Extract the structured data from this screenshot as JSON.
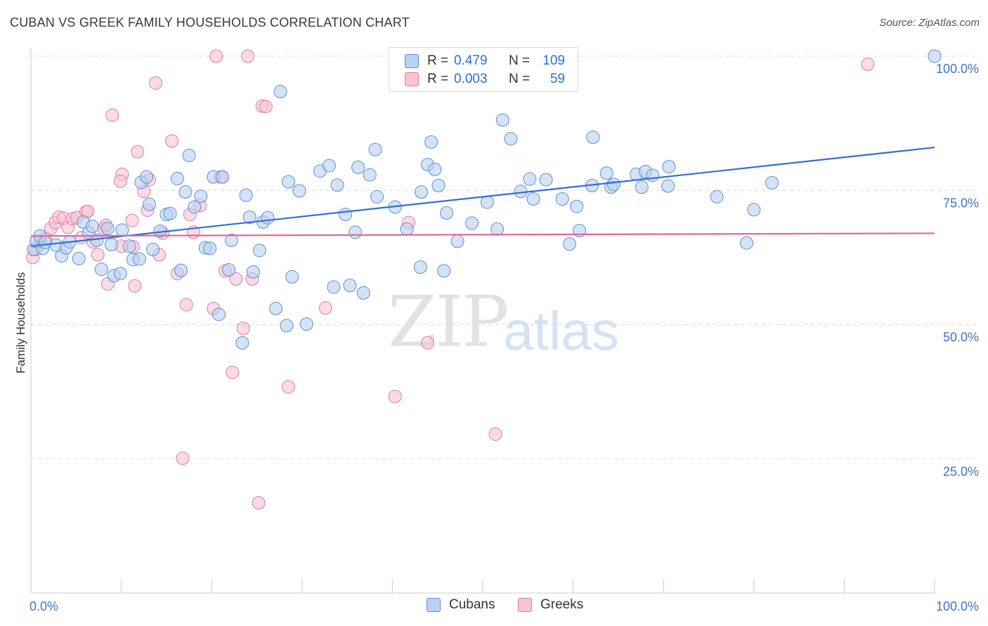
{
  "title": "CUBAN VS GREEK FAMILY HOUSEHOLDS CORRELATION CHART",
  "source": "Source: ZipAtlas.com",
  "watermark": {
    "zip": "ZIP",
    "atlas": "atlas"
  },
  "colors": {
    "cubans": "#5b8fd6",
    "cubans_fill": "#b9d1f2",
    "greeks": "#e07ba0",
    "greeks_fill": "#f7c3d5",
    "axis_label": "#3f74c9",
    "grid": "#d8d8d8"
  },
  "legend": {
    "rows": [
      {
        "r_label": "R =",
        "r_value": "0.479",
        "n_label": "N =",
        "n_value": "109"
      },
      {
        "r_label": "R =",
        "r_value": "0.003",
        "n_label": "N =",
        "n_value": "59"
      }
    ],
    "bottom": [
      "Cubans",
      "Greeks"
    ]
  },
  "chart_data": {
    "type": "scatter",
    "title": "CUBAN VS GREEK FAMILY HOUSEHOLDS CORRELATION CHART",
    "xlabel": "",
    "ylabel": "Family Households",
    "xlim": [
      0,
      100
    ],
    "ylim": [
      0,
      100
    ],
    "x_tick_labels": [
      "0.0%",
      "100.0%"
    ],
    "y_ticks": [
      25,
      50,
      75,
      100
    ],
    "y_tick_labels": [
      "25.0%",
      "50.0%",
      "75.0%",
      "100.0%"
    ],
    "grid": true,
    "legend_position": "top-center",
    "series": [
      {
        "name": "Cubans",
        "r": 0.479,
        "n": 109,
        "trend": [
          [
            0,
            64.6
          ],
          [
            100,
            83.0
          ]
        ],
        "points": [
          [
            0.3,
            64.0
          ],
          [
            0.6,
            65.5
          ],
          [
            1.0,
            66.5
          ],
          [
            1.3,
            64.2
          ],
          [
            1.6,
            65.3
          ],
          [
            2.8,
            64.8
          ],
          [
            3.4,
            62.8
          ],
          [
            3.9,
            64.3
          ],
          [
            4.3,
            65.4
          ],
          [
            5.3,
            62.3
          ],
          [
            5.8,
            69.1
          ],
          [
            6.4,
            67.1
          ],
          [
            6.8,
            68.3
          ],
          [
            7.3,
            65.7
          ],
          [
            7.8,
            60.3
          ],
          [
            8.5,
            67.9
          ],
          [
            8.9,
            64.9
          ],
          [
            9.2,
            59.1
          ],
          [
            9.9,
            59.5
          ],
          [
            10.1,
            67.6
          ],
          [
            10.9,
            64.6
          ],
          [
            11.3,
            62.1
          ],
          [
            12.0,
            62.2
          ],
          [
            12.2,
            76.5
          ],
          [
            12.8,
            77.5
          ],
          [
            13.1,
            72.4
          ],
          [
            13.5,
            64.0
          ],
          [
            14.3,
            67.4
          ],
          [
            15.0,
            70.5
          ],
          [
            15.4,
            70.7
          ],
          [
            16.2,
            77.2
          ],
          [
            16.6,
            60.1
          ],
          [
            17.1,
            74.7
          ],
          [
            17.5,
            81.5
          ],
          [
            18.1,
            71.9
          ],
          [
            18.8,
            73.9
          ],
          [
            19.3,
            64.3
          ],
          [
            19.8,
            64.2
          ],
          [
            20.2,
            77.5
          ],
          [
            20.8,
            51.9
          ],
          [
            21.2,
            77.5
          ],
          [
            21.9,
            60.2
          ],
          [
            22.2,
            65.7
          ],
          [
            23.4,
            46.6
          ],
          [
            23.8,
            74.1
          ],
          [
            24.2,
            70.0
          ],
          [
            24.6,
            59.8
          ],
          [
            25.3,
            63.8
          ],
          [
            25.7,
            69.1
          ],
          [
            26.2,
            69.9
          ],
          [
            27.1,
            53.0
          ],
          [
            27.6,
            93.4
          ],
          [
            28.3,
            49.8
          ],
          [
            28.5,
            76.6
          ],
          [
            28.9,
            58.9
          ],
          [
            29.7,
            74.9
          ],
          [
            30.5,
            50.1
          ],
          [
            32.0,
            78.6
          ],
          [
            33.0,
            79.6
          ],
          [
            33.5,
            57.0
          ],
          [
            33.9,
            76.0
          ],
          [
            34.8,
            70.5
          ],
          [
            35.3,
            57.3
          ],
          [
            35.9,
            67.2
          ],
          [
            36.2,
            79.3
          ],
          [
            36.8,
            55.9
          ],
          [
            37.5,
            77.9
          ],
          [
            38.1,
            82.6
          ],
          [
            38.3,
            73.8
          ],
          [
            40.3,
            71.9
          ],
          [
            41.6,
            67.8
          ],
          [
            43.1,
            60.7
          ],
          [
            43.2,
            74.7
          ],
          [
            43.9,
            79.8
          ],
          [
            44.3,
            84.0
          ],
          [
            44.7,
            78.9
          ],
          [
            45.1,
            75.9
          ],
          [
            45.7,
            60.0
          ],
          [
            46.0,
            70.8
          ],
          [
            48.8,
            68.9
          ],
          [
            50.5,
            72.8
          ],
          [
            51.6,
            67.8
          ],
          [
            52.2,
            88.1
          ],
          [
            53.1,
            84.6
          ],
          [
            54.2,
            74.8
          ],
          [
            55.2,
            77.1
          ],
          [
            55.6,
            73.4
          ],
          [
            57.0,
            77.0
          ],
          [
            58.8,
            73.4
          ],
          [
            60.4,
            72.0
          ],
          [
            60.7,
            67.5
          ],
          [
            62.2,
            84.9
          ],
          [
            62.1,
            75.9
          ],
          [
            63.7,
            78.2
          ],
          [
            64.2,
            75.6
          ],
          [
            64.5,
            76.1
          ],
          [
            67.0,
            78.0
          ],
          [
            67.6,
            75.6
          ],
          [
            68.0,
            78.5
          ],
          [
            68.8,
            77.8
          ],
          [
            70.5,
            75.8
          ],
          [
            70.6,
            79.4
          ],
          [
            75.9,
            73.8
          ],
          [
            79.2,
            65.2
          ],
          [
            80.0,
            71.4
          ],
          [
            82.0,
            76.4
          ],
          [
            100.0,
            100.0
          ],
          [
            59.6,
            65.0
          ],
          [
            47.2,
            65.5
          ]
        ]
      },
      {
        "name": "Greeks",
        "r": 0.003,
        "n": 59,
        "trend": [
          [
            0,
            66.5
          ],
          [
            100,
            67.0
          ]
        ],
        "points": [
          [
            0.2,
            62.5
          ],
          [
            0.5,
            64.0
          ],
          [
            1.1,
            65.5
          ],
          [
            1.6,
            66.0
          ],
          [
            2.2,
            67.9
          ],
          [
            2.7,
            69.0
          ],
          [
            3.1,
            70.0
          ],
          [
            3.6,
            69.8
          ],
          [
            4.1,
            68.1
          ],
          [
            4.6,
            69.7
          ],
          [
            5.1,
            69.9
          ],
          [
            5.6,
            66.2
          ],
          [
            6.1,
            71.0
          ],
          [
            6.3,
            71.1
          ],
          [
            6.9,
            65.4
          ],
          [
            7.4,
            63.0
          ],
          [
            8.1,
            67.9
          ],
          [
            8.3,
            68.5
          ],
          [
            8.5,
            57.6
          ],
          [
            9.0,
            89.0
          ],
          [
            10.1,
            78.0
          ],
          [
            9.9,
            76.7
          ],
          [
            11.2,
            69.4
          ],
          [
            11.3,
            64.5
          ],
          [
            11.5,
            57.2
          ],
          [
            11.8,
            82.2
          ],
          [
            12.5,
            74.8
          ],
          [
            12.9,
            71.3
          ],
          [
            13.1,
            77.0
          ],
          [
            13.8,
            95.0
          ],
          [
            14.2,
            63.0
          ],
          [
            14.6,
            67.0
          ],
          [
            15.6,
            84.2
          ],
          [
            16.2,
            59.5
          ],
          [
            16.8,
            25.1
          ],
          [
            17.2,
            53.7
          ],
          [
            17.6,
            70.5
          ],
          [
            18.0,
            67.2
          ],
          [
            18.7,
            72.2
          ],
          [
            20.2,
            53.0
          ],
          [
            21.0,
            77.5
          ],
          [
            21.5,
            60.0
          ],
          [
            22.3,
            41.1
          ],
          [
            22.7,
            58.5
          ],
          [
            23.5,
            49.3
          ],
          [
            24.5,
            58.5
          ],
          [
            25.2,
            16.8
          ],
          [
            25.6,
            90.7
          ],
          [
            26.0,
            90.6
          ],
          [
            28.5,
            38.4
          ],
          [
            32.6,
            53.1
          ],
          [
            40.3,
            36.6
          ],
          [
            41.8,
            69.0
          ],
          [
            43.9,
            46.6
          ],
          [
            51.4,
            29.6
          ],
          [
            20.5,
            100.0
          ],
          [
            24.0,
            100.0
          ],
          [
            92.6,
            98.5
          ],
          [
            10.0,
            64.6
          ]
        ]
      }
    ]
  }
}
